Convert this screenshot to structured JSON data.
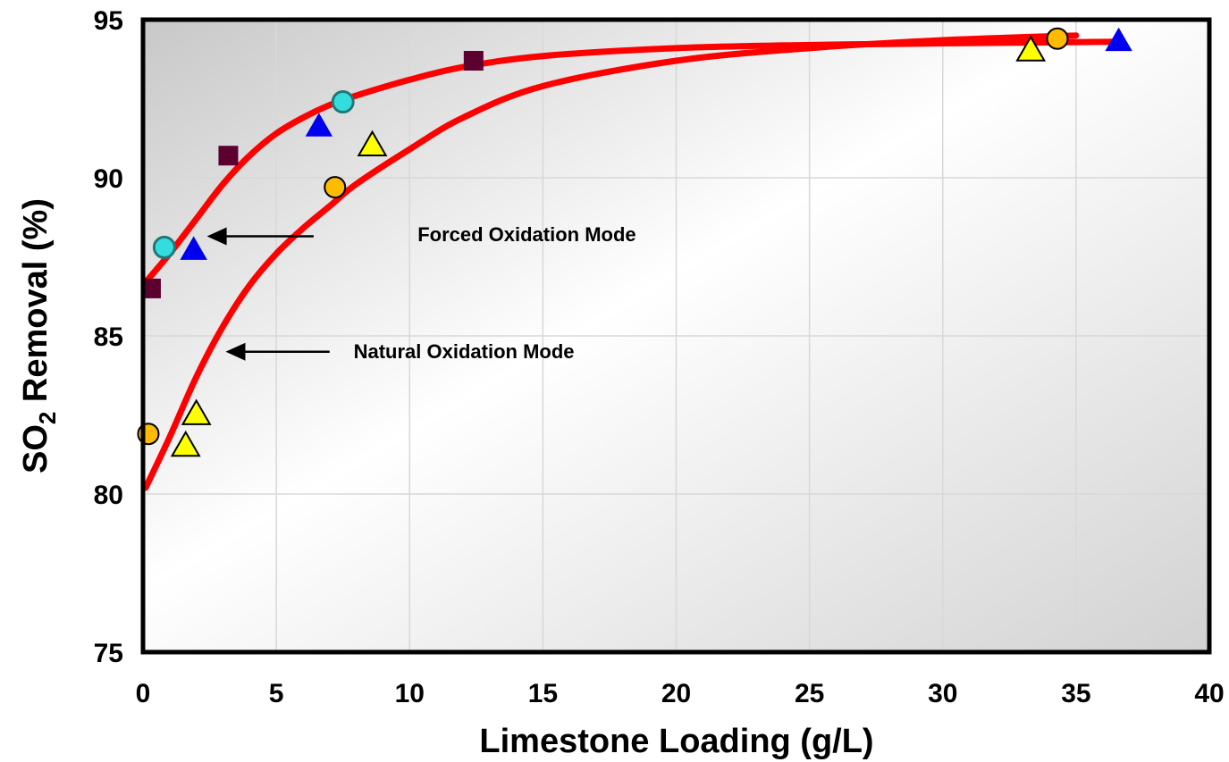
{
  "chart_data": {
    "type": "scatter",
    "xlabel": "Limestone Loading (g/L)",
    "ylabel_parts": {
      "main": "SO",
      "sub": "2",
      "rest": " Removal (%)"
    },
    "xlim": [
      0,
      40
    ],
    "ylim": [
      75,
      95
    ],
    "x_ticks": [
      "0",
      "5",
      "10",
      "15",
      "20",
      "25",
      "30",
      "35",
      "40"
    ],
    "y_ticks": [
      "75",
      "80",
      "85",
      "90",
      "95"
    ],
    "grid": true,
    "colors": {
      "curve": "#ff0000",
      "square": "#5c0030",
      "cyan_circle": "#33dddd",
      "blue_triangle": "#0000ee",
      "yellow_triangle": "#ffff00",
      "orange_circle": "#ffbb00"
    },
    "curves": [
      {
        "label": "Forced Oxidation Mode",
        "points": [
          [
            0.1,
            86.7
          ],
          [
            1,
            87.6
          ],
          [
            2,
            88.7
          ],
          [
            3,
            89.8
          ],
          [
            4,
            90.7
          ],
          [
            5,
            91.4
          ],
          [
            6,
            91.9
          ],
          [
            7,
            92.3
          ],
          [
            8,
            92.6
          ],
          [
            10,
            93.1
          ],
          [
            12,
            93.5
          ],
          [
            15,
            93.85
          ],
          [
            20,
            94.1
          ],
          [
            25,
            94.2
          ],
          [
            30,
            94.25
          ],
          [
            36.5,
            94.3
          ]
        ]
      },
      {
        "label": "Natural Oxidation Mode",
        "points": [
          [
            0.1,
            80.2
          ],
          [
            1,
            81.8
          ],
          [
            2,
            83.7
          ],
          [
            3,
            85.3
          ],
          [
            4,
            86.6
          ],
          [
            5,
            87.6
          ],
          [
            6,
            88.4
          ],
          [
            7,
            89.1
          ],
          [
            8,
            89.8
          ],
          [
            10,
            90.9
          ],
          [
            12,
            91.9
          ],
          [
            15,
            92.9
          ],
          [
            20,
            93.7
          ],
          [
            25,
            94.1
          ],
          [
            30,
            94.35
          ],
          [
            35,
            94.5
          ]
        ]
      }
    ],
    "annotations": [
      {
        "text": "Forced Oxidation Mode",
        "x": 10.3,
        "y": 88.0,
        "arrow_from": [
          6.4,
          88.15
        ],
        "arrow_to": [
          2.4,
          88.15
        ]
      },
      {
        "text": "Natural Oxidation Mode",
        "x": 7.9,
        "y": 84.3,
        "arrow_from": [
          7.0,
          84.5
        ],
        "arrow_to": [
          3.1,
          84.5
        ]
      }
    ],
    "series": [
      {
        "marker": "square",
        "color_key": "square",
        "points": [
          [
            0.3,
            86.5
          ],
          [
            3.2,
            90.7
          ],
          [
            12.4,
            93.7
          ]
        ]
      },
      {
        "marker": "circle",
        "color_key": "cyan_circle",
        "points": [
          [
            0.8,
            87.8
          ],
          [
            7.5,
            92.4
          ]
        ]
      },
      {
        "marker": "triangle",
        "color_key": "blue_triangle",
        "points": [
          [
            1.9,
            87.7
          ],
          [
            6.6,
            91.6
          ],
          [
            36.6,
            94.3
          ]
        ]
      },
      {
        "marker": "triangle",
        "color_key": "yellow_triangle",
        "points": [
          [
            1.6,
            81.5
          ],
          [
            2.0,
            82.5
          ],
          [
            8.6,
            91.0
          ],
          [
            33.3,
            94.0
          ]
        ]
      },
      {
        "marker": "circle",
        "color_key": "orange_circle",
        "points": [
          [
            0.2,
            81.9
          ],
          [
            7.2,
            89.7
          ],
          [
            34.3,
            94.4
          ]
        ]
      }
    ]
  }
}
